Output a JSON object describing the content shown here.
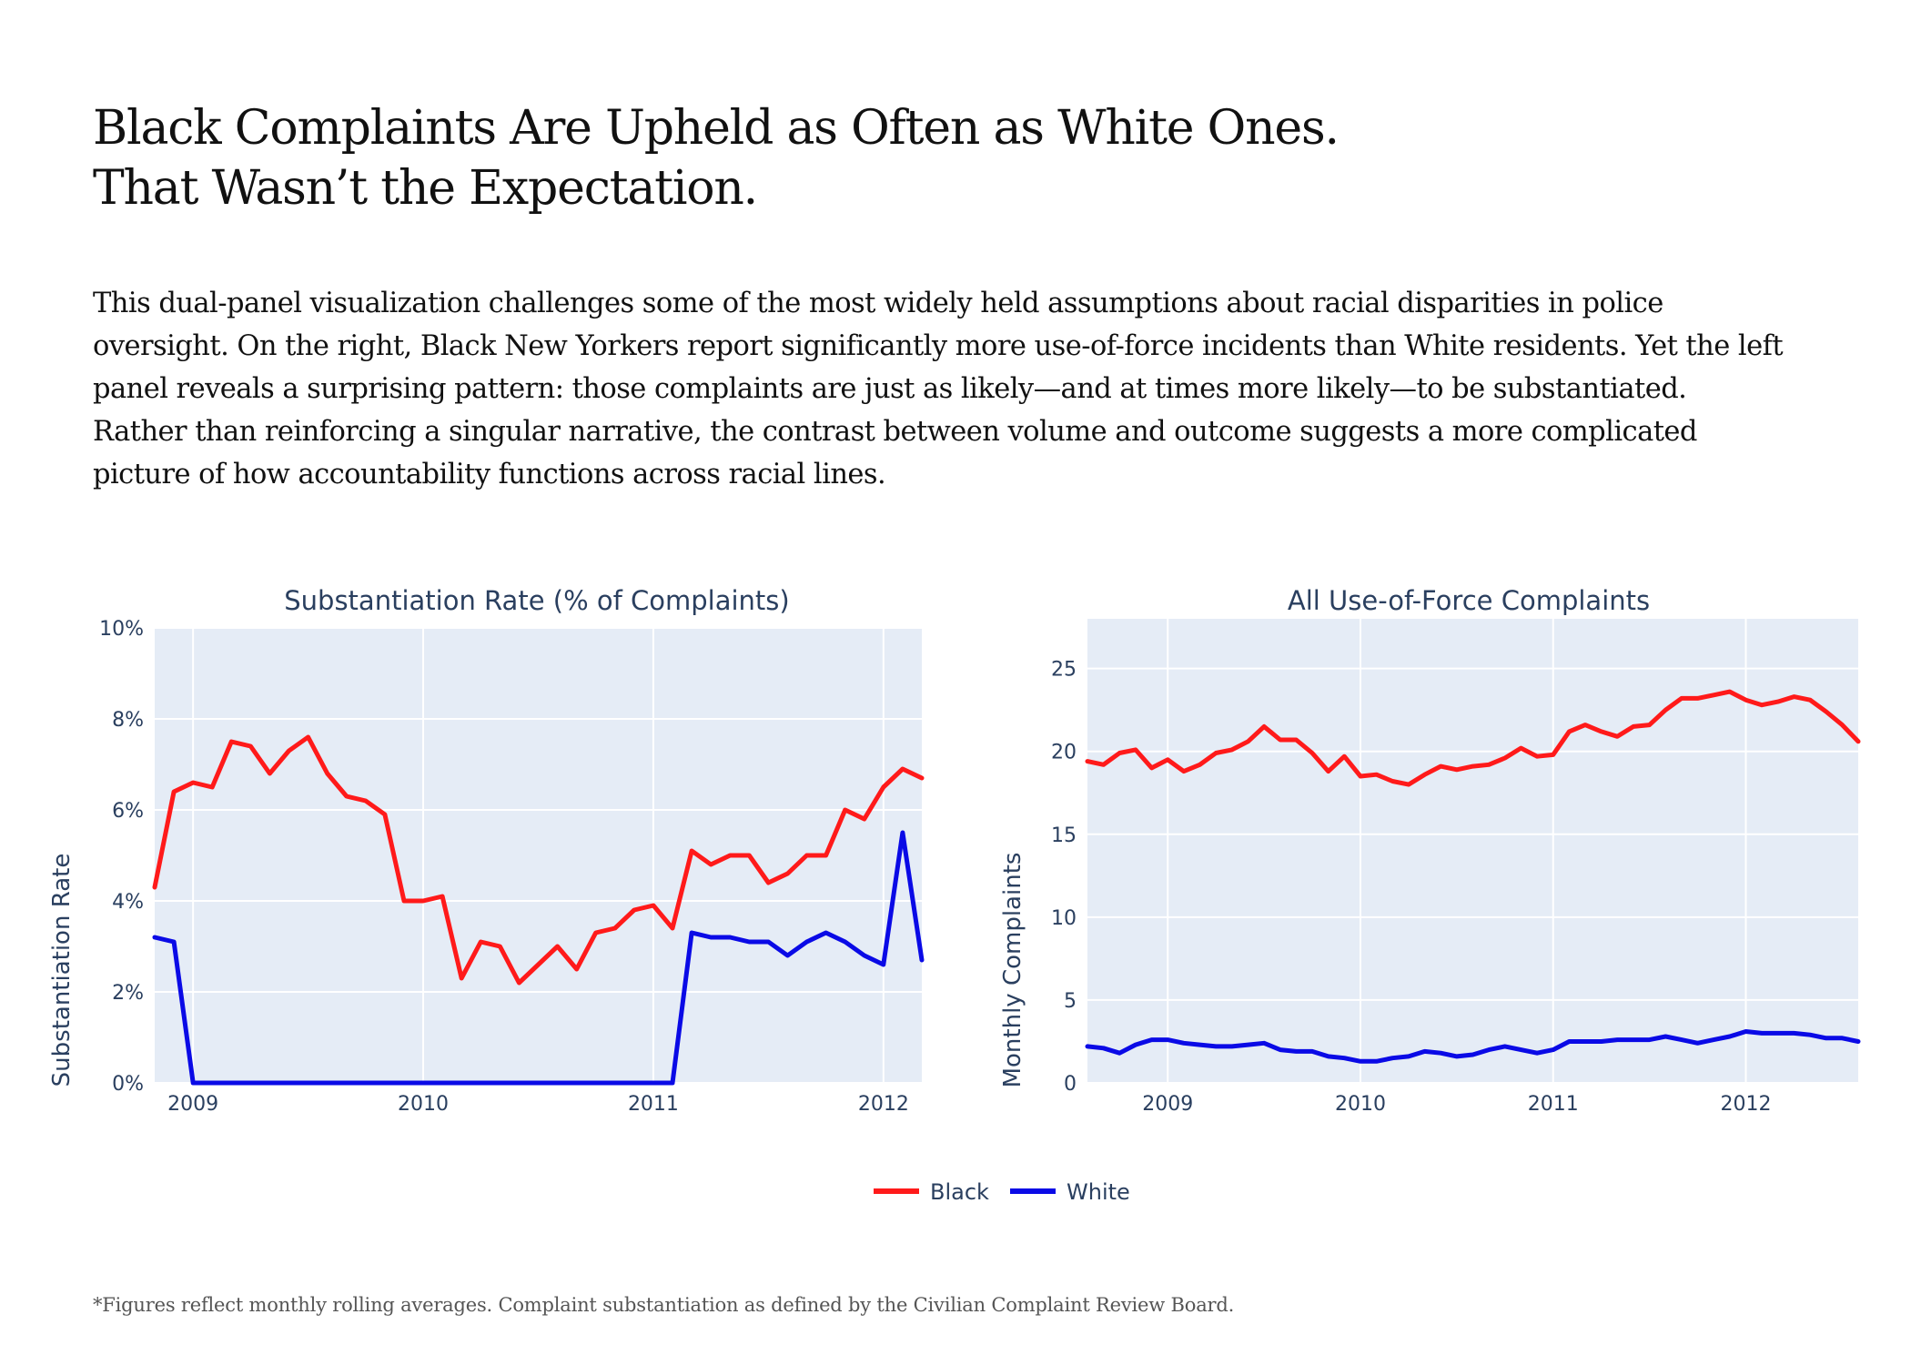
{
  "headline": {
    "line1": "Black Complaints Are Upheld as Often as White Ones.",
    "line2": "That Wasn’t the Expectation."
  },
  "intro": "This dual-panel visualization challenges some of the most widely held assumptions about racial disparities in police oversight. On the right, Black New Yorkers report significantly more use-of-force incidents than White residents. Yet the left panel reveals a surprising pattern: those complaints are just as likely—and at times more likely—to be substantiated. Rather than reinforcing a singular narrative, the contrast between volume and outcome suggests a more complicated picture of how accountability functions across racial lines.",
  "footnote": "*Figures reflect monthly rolling averages. Complaint substantiation as defined by the Civilian Complaint Review Board.",
  "colors": {
    "black_series": "#ff1a1a",
    "white_series": "#0a0ae6",
    "plot_bg": "#e5ecf6",
    "grid": "#ffffff",
    "axis_text": "#2a3f5f"
  },
  "legend": {
    "placement": "bottom-center",
    "items": [
      {
        "label": "Black",
        "color": "#ff1a1a"
      },
      {
        "label": "White",
        "color": "#0a0ae6"
      }
    ]
  },
  "chart_data": [
    {
      "type": "line",
      "title": "Substantiation Rate (% of Complaints)",
      "ylabel": "Substantiation Rate",
      "xlabel": "",
      "xlim": [
        "2008-11",
        "2012-03"
      ],
      "ylim": [
        0,
        10
      ],
      "x_ticks": [
        "2009",
        "2010",
        "2011",
        "2012"
      ],
      "y_ticks": [
        "0%",
        "2%",
        "4%",
        "6%",
        "8%",
        "10%"
      ],
      "grid": true,
      "x": [
        "2008-11",
        "2008-12",
        "2009-01",
        "2009-02",
        "2009-03",
        "2009-04",
        "2009-05",
        "2009-06",
        "2009-07",
        "2009-08",
        "2009-09",
        "2009-10",
        "2009-11",
        "2009-12",
        "2010-01",
        "2010-02",
        "2010-03",
        "2010-04",
        "2010-05",
        "2010-06",
        "2010-07",
        "2010-08",
        "2010-09",
        "2010-10",
        "2010-11",
        "2010-12",
        "2011-01",
        "2011-02",
        "2011-03",
        "2011-04",
        "2011-05",
        "2011-06",
        "2011-07",
        "2011-08",
        "2011-09",
        "2011-10",
        "2011-11",
        "2011-12",
        "2012-01",
        "2012-02",
        "2012-03"
      ],
      "series": [
        {
          "name": "Black",
          "values": [
            4.3,
            6.4,
            6.6,
            6.5,
            7.5,
            7.4,
            6.8,
            7.3,
            7.6,
            6.8,
            6.3,
            6.2,
            5.9,
            4.0,
            4.0,
            4.1,
            2.3,
            3.1,
            3.0,
            2.2,
            2.6,
            3.0,
            2.5,
            3.3,
            3.4,
            3.8,
            3.9,
            3.4,
            5.1,
            4.8,
            5.0,
            5.0,
            4.4,
            4.6,
            5.0,
            5.0,
            6.0,
            5.8,
            6.5,
            6.9,
            6.7
          ]
        },
        {
          "name": "White",
          "values": [
            3.2,
            3.1,
            0,
            0,
            0,
            0,
            0,
            0,
            0,
            0,
            0,
            0,
            0,
            0,
            0,
            0,
            0,
            0,
            0,
            0,
            0,
            0,
            0,
            0,
            0,
            0,
            0,
            0,
            3.3,
            3.2,
            3.2,
            3.1,
            3.1,
            2.8,
            3.1,
            3.3,
            3.1,
            2.8,
            2.6,
            5.5,
            2.7
          ]
        }
      ]
    },
    {
      "type": "line",
      "title": "All Use-of-Force Complaints",
      "ylabel": "Monthly Complaints",
      "xlabel": "",
      "xlim": [
        "2008-08",
        "2012-08"
      ],
      "ylim": [
        0,
        28
      ],
      "x_ticks": [
        "2009",
        "2010",
        "2011",
        "2012"
      ],
      "y_ticks": [
        "0",
        "5",
        "10",
        "15",
        "20",
        "25"
      ],
      "grid": true,
      "x": [
        "2008-08",
        "2008-09",
        "2008-10",
        "2008-11",
        "2008-12",
        "2009-01",
        "2009-02",
        "2009-03",
        "2009-04",
        "2009-05",
        "2009-06",
        "2009-07",
        "2009-08",
        "2009-09",
        "2009-10",
        "2009-11",
        "2009-12",
        "2010-01",
        "2010-02",
        "2010-03",
        "2010-04",
        "2010-05",
        "2010-06",
        "2010-07",
        "2010-08",
        "2010-09",
        "2010-10",
        "2010-11",
        "2010-12",
        "2011-01",
        "2011-02",
        "2011-03",
        "2011-04",
        "2011-05",
        "2011-06",
        "2011-07",
        "2011-08",
        "2011-09",
        "2011-10",
        "2011-11",
        "2011-12",
        "2012-01",
        "2012-02",
        "2012-03",
        "2012-04",
        "2012-05",
        "2012-06",
        "2012-07",
        "2012-08"
      ],
      "series": [
        {
          "name": "Black",
          "values": [
            19.4,
            19.2,
            19.9,
            20.1,
            19.0,
            19.5,
            18.8,
            19.2,
            19.9,
            20.1,
            20.6,
            21.5,
            20.7,
            20.7,
            19.9,
            18.8,
            19.7,
            18.5,
            18.6,
            18.2,
            18.0,
            18.6,
            19.1,
            18.9,
            19.1,
            19.2,
            19.6,
            20.2,
            19.7,
            19.8,
            21.2,
            21.6,
            21.2,
            20.9,
            21.5,
            21.6,
            22.5,
            23.2,
            23.2,
            23.4,
            23.6,
            23.1,
            22.8,
            23.0,
            23.3,
            23.1,
            22.4,
            21.6,
            20.6
          ]
        },
        {
          "name": "White",
          "values": [
            2.2,
            2.1,
            1.8,
            2.3,
            2.6,
            2.6,
            2.4,
            2.3,
            2.2,
            2.2,
            2.3,
            2.4,
            2.0,
            1.9,
            1.9,
            1.6,
            1.5,
            1.3,
            1.3,
            1.5,
            1.6,
            1.9,
            1.8,
            1.6,
            1.7,
            2.0,
            2.2,
            2.0,
            1.8,
            2.0,
            2.5,
            2.5,
            2.5,
            2.6,
            2.6,
            2.6,
            2.8,
            2.6,
            2.4,
            2.6,
            2.8,
            3.1,
            3.0,
            3.0,
            3.0,
            2.9,
            2.7,
            2.7,
            2.5
          ]
        }
      ]
    }
  ]
}
